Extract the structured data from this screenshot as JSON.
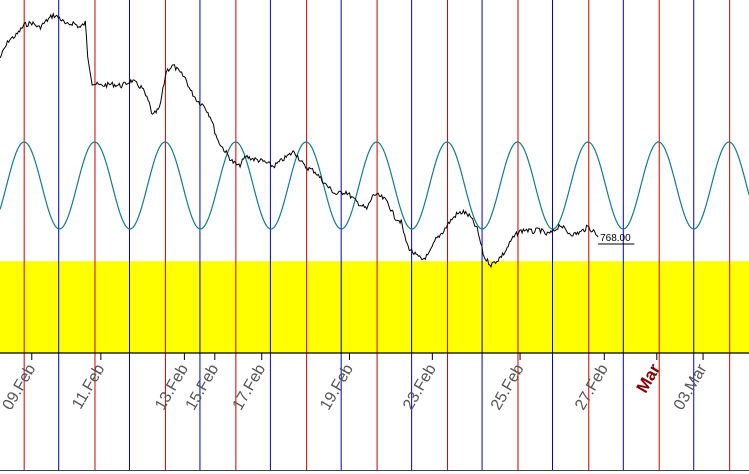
{
  "chart_data": {
    "type": "line",
    "title": "",
    "xlabel": "",
    "ylabel": "",
    "price_label": "768.00",
    "x_tick_labels": [
      {
        "text": "09.Feb",
        "day": 9,
        "highlight": false
      },
      {
        "text": "11.Feb",
        "day": 11,
        "highlight": false
      },
      {
        "text": "13.Feb",
        "day": 13.42,
        "highlight": false
      },
      {
        "text": "15.Feb",
        "day": 14.3,
        "highlight": false
      },
      {
        "text": "17.Feb",
        "day": 15.66,
        "highlight": false
      },
      {
        "text": "19.Feb",
        "day": 18.2,
        "highlight": false
      },
      {
        "text": "23.Feb",
        "day": 20.6,
        "highlight": false
      },
      {
        "text": "25.Feb",
        "day": 23.14,
        "highlight": false
      },
      {
        "text": "27.Feb",
        "day": 25.58,
        "highlight": false
      },
      {
        "text": "Mar",
        "day": 27.1,
        "highlight": true
      },
      {
        "text": "03.Mar",
        "day": 28.44,
        "highlight": false
      }
    ],
    "x_range_days": [
      8.08,
      29.77
    ],
    "red_cycle_lines": [
      8.78,
      10.83,
      12.87,
      14.91,
      16.96,
      19.0,
      21.04,
      23.08,
      25.13,
      27.17,
      29.21
    ],
    "blue_cycle_lines": [
      9.78,
      11.83,
      13.87,
      15.91,
      17.96,
      20.0,
      22.04,
      24.08,
      26.13,
      28.17
    ],
    "price_series": {
      "name": "",
      "color": "#000000",
      "x_days": [
        8.08,
        8.33,
        8.55,
        8.78,
        9.0,
        9.22,
        9.45,
        9.62,
        9.8,
        10.0,
        10.2,
        10.4,
        10.55,
        10.62,
        10.75,
        11.0,
        11.3,
        11.6,
        11.9,
        12.2,
        12.4,
        12.5,
        12.7,
        12.9,
        13.1,
        13.3,
        13.45,
        13.6,
        13.8,
        14.0,
        14.2,
        14.3,
        14.4,
        14.6,
        14.8,
        15.0,
        15.2,
        15.4,
        15.7,
        16.0,
        16.3,
        16.6,
        16.9,
        17.2,
        17.5,
        17.8,
        18.1,
        18.4,
        18.7,
        18.9,
        19.1,
        19.3,
        19.5,
        19.7,
        19.8,
        19.9,
        20.1,
        20.3,
        20.5,
        20.7,
        20.9,
        21.1,
        21.3,
        21.5,
        21.7,
        21.9,
        22.1,
        22.3,
        22.5,
        22.7,
        22.9,
        23.1,
        23.3,
        23.5,
        23.7,
        23.9,
        24.1,
        24.3,
        24.5,
        24.7,
        24.9,
        25.1,
        25.3,
        25.4
      ],
      "values": [
        803.5,
        807.0,
        808.0,
        810.0,
        810.5,
        809.5,
        811.0,
        812.0,
        811.5,
        810.0,
        810.5,
        809.5,
        810.5,
        804.0,
        798.5,
        798.0,
        798.3,
        798.0,
        799.0,
        797.5,
        794.5,
        792.0,
        793.5,
        801.0,
        802.0,
        800.5,
        799.5,
        797.0,
        795.0,
        794.0,
        791.5,
        789.0,
        787.0,
        785.0,
        783.0,
        782.0,
        784.0,
        783.5,
        783.0,
        782.0,
        783.5,
        785.0,
        782.0,
        781.0,
        778.5,
        776.5,
        777.0,
        775.0,
        773.5,
        776.5,
        776.0,
        775.0,
        772.0,
        771.0,
        768.0,
        766.0,
        764.5,
        763.5,
        764.5,
        767.5,
        769.0,
        771.0,
        772.5,
        773.0,
        772.0,
        769.5,
        764.0,
        762.5,
        763.5,
        765.0,
        767.5,
        769.0,
        769.5,
        769.0,
        769.5,
        768.5,
        769.0,
        770.5,
        769.0,
        768.5,
        769.0,
        770.0,
        769.0,
        768.0
      ]
    },
    "cycle_series": {
      "name": "",
      "color": "#167a8c",
      "period_days": 2.041,
      "peak_day": 8.78,
      "display_top": 142,
      "display_bottom": 229
    },
    "band": {
      "color": "#ffff00",
      "from_value": 763.2,
      "to_value": 745.0
    },
    "y_range": [
      745.0,
      815.0
    ],
    "price_line_start_day": 25.4,
    "price_line_end_day": 26.45,
    "grid": false,
    "colors": {
      "red_line": "#cc0000",
      "blue_line": "#0000cc",
      "tick_text": "#555555",
      "highlight_tick_text": "#800000"
    }
  }
}
